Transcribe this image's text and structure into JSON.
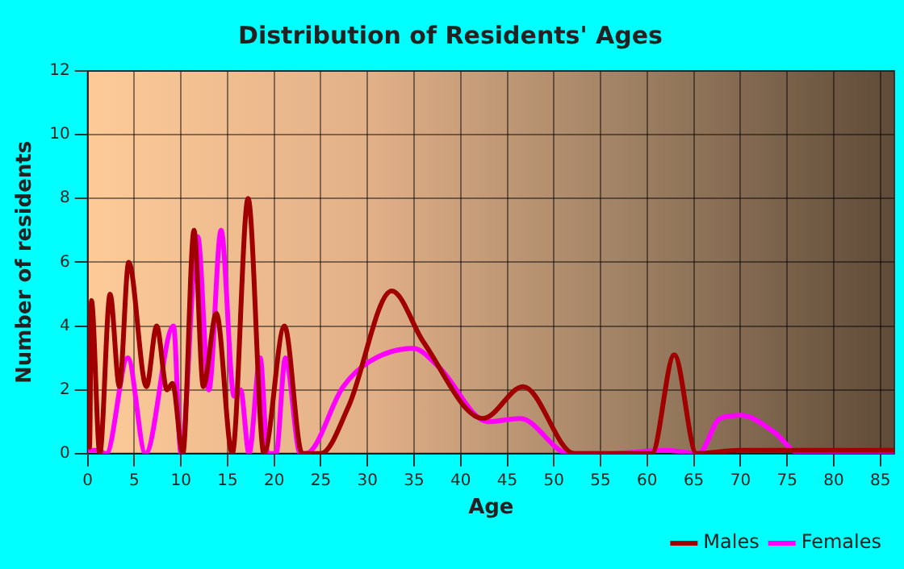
{
  "chart_data": {
    "type": "line",
    "title": "Distribution of Residents' Ages",
    "xlabel": "Age",
    "ylabel": "Number of residents",
    "xlim": [
      0,
      86.5
    ],
    "xticks": [
      0,
      5,
      10,
      15,
      20,
      25,
      30,
      35,
      40,
      45,
      50,
      55,
      60,
      65,
      70,
      75,
      80,
      85
    ],
    "ylim": [
      0,
      12
    ],
    "yticks": [
      0,
      2,
      4,
      6,
      8,
      10,
      12
    ],
    "grid": true,
    "legend": "bottom right",
    "series": [
      {
        "name": "Males",
        "color": "#a00000",
        "x": [
          0,
          0.2,
          0.4,
          1.3,
          2.4,
          3.4,
          4.4,
          6.3,
          7.4,
          8.5,
          9.1,
          10.2,
          11.4,
          12.4,
          13.8,
          15.5,
          17.2,
          18.9,
          21.1,
          23,
          25,
          28,
          32.6,
          36,
          42.4,
          46.7,
          52.2,
          60.5,
          62.9,
          65.3,
          70,
          86.5
        ],
        "values": [
          3,
          0.2,
          4.8,
          0,
          5,
          2.1,
          6,
          2.1,
          4,
          2,
          2.2,
          0,
          7,
          2.1,
          4.4,
          0,
          8,
          0,
          4,
          0,
          0,
          1.5,
          5.1,
          3.5,
          1.1,
          2.1,
          0,
          0,
          3.1,
          0,
          0.1,
          0.1
        ]
      },
      {
        "name": "Females",
        "color": "#ff00ff",
        "x": [
          0,
          1,
          2,
          4.3,
          6.2,
          9.2,
          10,
          11.8,
          13,
          14.3,
          15.7,
          16.4,
          17.3,
          18.5,
          19.3,
          20.2,
          21.2,
          22.8,
          23.4,
          27.4,
          30.3,
          34.9,
          37.7,
          42.9,
          46.4,
          51.6,
          56,
          62,
          65.5,
          67.8,
          70.1,
          73.5,
          76.4,
          86.5
        ],
        "values": [
          0.1,
          0.1,
          0,
          3,
          0,
          4,
          0,
          6.8,
          2,
          7,
          1.8,
          2,
          0,
          3,
          0,
          0,
          3,
          0,
          0,
          2.1,
          2.9,
          3.3,
          2.7,
          1,
          1.1,
          0,
          0,
          0.1,
          0,
          1.1,
          1.2,
          0.7,
          0,
          0
        ]
      }
    ]
  }
}
